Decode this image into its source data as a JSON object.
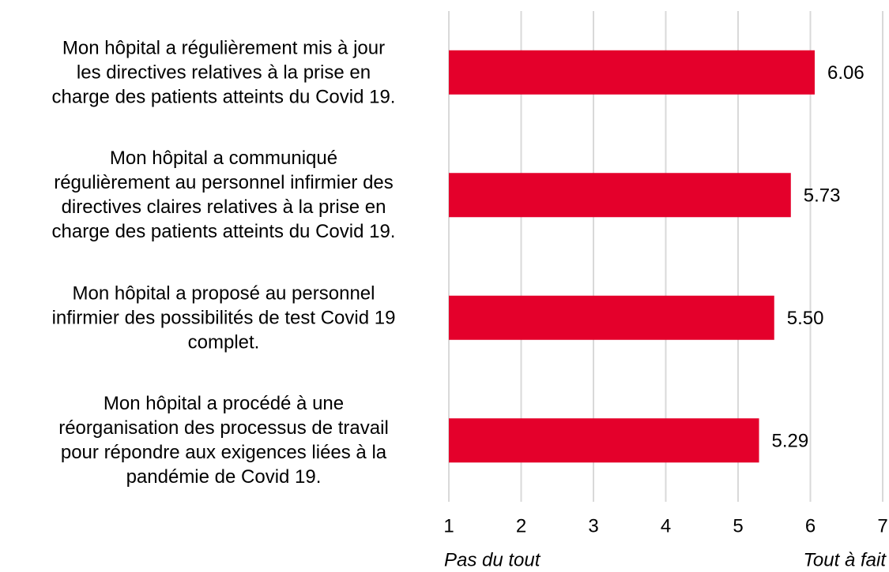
{
  "chart_data": {
    "type": "barh",
    "categories": [
      "Mon hôpital a régulièrement mis à jour\nles directives relatives à la prise en\ncharge des patients atteints du Covid 19.",
      "Mon hôpital a communiqué\nrégulièrement au personnel infirmier des\ndirectives claires relatives à la prise en\ncharge des patients atteints du Covid 19.",
      "Mon hôpital a proposé au personnel\ninfirmier des possibilités de test Covid 19\ncomplet.",
      "Mon hôpital a procédé à une\nréorganisation des processus de travail\npour répondre aux exigences liées à la\npandémie de Covid 19."
    ],
    "values": [
      6.06,
      5.73,
      5.5,
      5.29
    ],
    "value_labels": [
      "6.06",
      "5.73",
      "5.50",
      "5.29"
    ],
    "color": "#e4002b",
    "xlim": [
      1,
      7
    ],
    "xticks": [
      1,
      2,
      3,
      4,
      5,
      6,
      7
    ],
    "grid": true,
    "x_label_left": "Pas du tout",
    "x_label_right": "Tout à fait"
  }
}
